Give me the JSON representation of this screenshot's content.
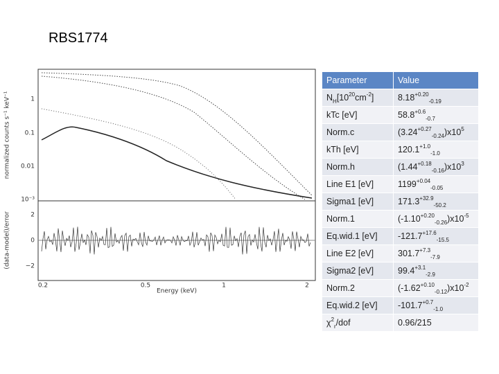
{
  "title": "RBS1774",
  "plot": {
    "x_label": "Energy (keV)",
    "y_label_top": "normalized counts s⁻¹ keV⁻¹",
    "y_label_bottom": "(data-model)/error",
    "x_ticks": [
      "0.2",
      "0.5",
      "1",
      "2"
    ],
    "y_ticks_top": [
      "1",
      "0.1",
      "0.01",
      "10⁻³"
    ],
    "y_ticks_bottom": [
      "2",
      "0",
      "−2"
    ]
  },
  "table": {
    "header": [
      "Parameter",
      "Value"
    ],
    "rows": [
      [
        [
          {
            "text": "N"
          },
          {
            "sub": "H"
          },
          {
            "text": " [10"
          },
          {
            "sup": "20"
          },
          {
            "text": "cm"
          },
          {
            "sup": "-2"
          },
          {
            "text": "]"
          }
        ],
        [
          {
            "text": "8.18"
          },
          {
            "sup": "+0.20"
          },
          {
            "sub": "-0.19"
          }
        ]
      ],
      [
        [
          {
            "text": "kTc [eV]"
          }
        ],
        [
          {
            "text": "58.8"
          },
          {
            "sup": "+0.6"
          },
          {
            "sub": "-0.7"
          }
        ]
      ],
      [
        [
          {
            "text": "Norm.c"
          }
        ],
        [
          {
            "text": "(3.24"
          },
          {
            "sup": "+0.27"
          },
          {
            "sub": "-0.24"
          },
          {
            "text": ")x10"
          },
          {
            "sup": "5"
          }
        ]
      ],
      [
        [
          {
            "text": "kTh [eV]"
          }
        ],
        [
          {
            "text": "120.1"
          },
          {
            "sup": "+1.0"
          },
          {
            "sub": "-1.0"
          }
        ]
      ],
      [
        [
          {
            "text": "Norm.h"
          }
        ],
        [
          {
            "text": "(1.44"
          },
          {
            "sup": "+0.18"
          },
          {
            "sub": "-0.16"
          },
          {
            "text": ")x10"
          },
          {
            "sup": "3"
          }
        ]
      ],
      [
        [
          {
            "text": "Line E1 [eV]"
          }
        ],
        [
          {
            "text": "1199"
          },
          {
            "sup": "+0.04"
          },
          {
            "sub": "-0.05"
          }
        ]
      ],
      [
        [
          {
            "text": "Sigma1 [eV]"
          }
        ],
        [
          {
            "text": "171.3"
          },
          {
            "sup": "+32.9"
          },
          {
            "sub": "-50.2"
          }
        ]
      ],
      [
        [
          {
            "text": "Norm.1"
          }
        ],
        [
          {
            "text": "(-1.10"
          },
          {
            "sup": "+0.20"
          },
          {
            "sub": "-0.26"
          },
          {
            "text": ")x10"
          },
          {
            "sup": "-5"
          }
        ]
      ],
      [
        [
          {
            "text": "Eq.wid.1 [eV]"
          }
        ],
        [
          {
            "text": "-121.7"
          },
          {
            "sup": "+17.6"
          },
          {
            "sub": "-15.5"
          }
        ]
      ],
      [
        [
          {
            "text": "Line E2 [eV]"
          }
        ],
        [
          {
            "text": "301.7"
          },
          {
            "sup": "+7.3"
          },
          {
            "sub": "-7.9"
          }
        ]
      ],
      [
        [
          {
            "text": "Sigma2 [eV]"
          }
        ],
        [
          {
            "text": "99.4"
          },
          {
            "sup": "+3.1"
          },
          {
            "sub": "-2.9"
          }
        ]
      ],
      [
        [
          {
            "text": "Norm.2"
          }
        ],
        [
          {
            "text": "(-1.62"
          },
          {
            "sup": "+0.10"
          },
          {
            "sub": "-0.12"
          },
          {
            "text": ")x10"
          },
          {
            "sup": "-2"
          }
        ]
      ],
      [
        [
          {
            "text": "Eq.wid.2 [eV]"
          }
        ],
        [
          {
            "text": "-101.7"
          },
          {
            "sup": "+0.7"
          },
          {
            "sub": "-1.0"
          }
        ]
      ],
      [
        [
          {
            "text": "χ"
          },
          {
            "sup": "2"
          },
          {
            "sub": "r"
          },
          {
            "text": "/dof"
          }
        ],
        [
          {
            "text": "0.96/215"
          }
        ]
      ]
    ]
  }
}
